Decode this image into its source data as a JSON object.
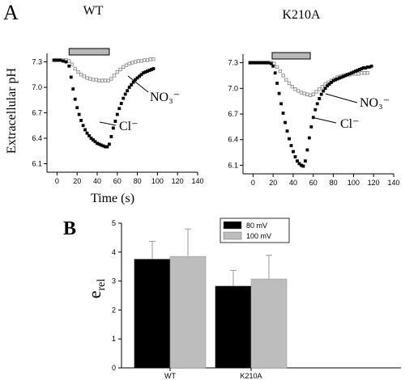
{
  "figure": {
    "panel_a_letter": "A",
    "panel_b_letter": "B"
  },
  "chart_data": [
    {
      "type": "scatter",
      "panel": "A",
      "title": "WT",
      "xlabel": "Time (s)",
      "ylabel": "Extracellular pH",
      "xlim": [
        -10,
        140
      ],
      "ylim": [
        6.0,
        7.4
      ],
      "xticks": [
        "0",
        "20",
        "40",
        "60",
        "80",
        "100",
        "120",
        "140"
      ],
      "yticks": [
        "6.1",
        "6.4",
        "6.7",
        "7.0",
        "7.3"
      ],
      "grid": false,
      "stimulus_bar": {
        "start": 12,
        "end": 52,
        "color": "#b8b8b8"
      },
      "annotations": [
        "NO₃⁻",
        "Cl⁻"
      ],
      "series": [
        {
          "name": "NO₃⁻",
          "marker": "open-square",
          "color": "#8c8c8c",
          "x": [
            -3,
            0,
            3,
            6,
            9,
            12,
            15,
            18,
            21,
            24,
            27,
            30,
            33,
            36,
            39,
            42,
            45,
            48,
            51,
            54,
            57,
            60,
            63,
            66,
            69,
            72,
            75,
            78,
            81,
            84,
            87,
            90,
            93,
            96
          ],
          "y": [
            7.32,
            7.32,
            7.32,
            7.32,
            7.32,
            7.31,
            7.27,
            7.22,
            7.18,
            7.15,
            7.13,
            7.11,
            7.1,
            7.09,
            7.09,
            7.08,
            7.08,
            7.08,
            7.08,
            7.1,
            7.14,
            7.18,
            7.21,
            7.24,
            7.26,
            7.28,
            7.29,
            7.3,
            7.31,
            7.31,
            7.32,
            7.32,
            7.33,
            7.33
          ]
        },
        {
          "name": "Cl⁻",
          "marker": "filled-square",
          "color": "#000000",
          "x": [
            -3,
            0,
            3,
            6,
            9,
            12,
            14,
            16,
            18,
            20,
            22,
            24,
            26,
            28,
            30,
            32,
            34,
            36,
            38,
            40,
            42,
            44,
            46,
            48,
            50,
            52,
            54,
            56,
            58,
            60,
            62,
            64,
            66,
            68,
            70,
            72,
            74,
            76,
            78,
            80,
            82,
            84,
            86,
            88,
            90,
            92,
            94,
            96
          ],
          "y": [
            7.32,
            7.32,
            7.32,
            7.31,
            7.3,
            7.25,
            7.12,
            6.98,
            6.86,
            6.76,
            6.68,
            6.61,
            6.55,
            6.5,
            6.46,
            6.43,
            6.4,
            6.38,
            6.36,
            6.34,
            6.33,
            6.32,
            6.31,
            6.3,
            6.3,
            6.33,
            6.42,
            6.52,
            6.6,
            6.68,
            6.75,
            6.81,
            6.87,
            6.92,
            6.96,
            7.0,
            7.03,
            7.06,
            7.09,
            7.11,
            7.13,
            7.15,
            7.17,
            7.18,
            7.19,
            7.2,
            7.21,
            7.22
          ]
        }
      ]
    },
    {
      "type": "scatter",
      "panel": "A",
      "title": "K210A",
      "xlabel": "",
      "ylabel": "",
      "xlim": [
        -10,
        140
      ],
      "ylim": [
        6.0,
        7.4
      ],
      "xticks": [
        "0",
        "20",
        "40",
        "60",
        "80",
        "100",
        "120",
        "140"
      ],
      "yticks": [
        "6.1",
        "6.4",
        "6.7",
        "7.0",
        "7.3"
      ],
      "grid": false,
      "stimulus_bar": {
        "start": 19,
        "end": 57,
        "color": "#b8b8b8"
      },
      "annotations": [
        "NO₃⁻",
        "Cl⁻"
      ],
      "series": [
        {
          "name": "NO₃⁻",
          "marker": "open-square",
          "color": "#8c8c8c",
          "x": [
            -3,
            0,
            3,
            6,
            9,
            12,
            15,
            18,
            21,
            24,
            27,
            30,
            33,
            36,
            39,
            42,
            45,
            48,
            51,
            54,
            57,
            60,
            63,
            66,
            69,
            72,
            75,
            78,
            81,
            84,
            87,
            90,
            93,
            96,
            99,
            102,
            105,
            108,
            111,
            114
          ],
          "y": [
            7.3,
            7.3,
            7.3,
            7.3,
            7.3,
            7.3,
            7.3,
            7.3,
            7.29,
            7.25,
            7.2,
            7.15,
            7.1,
            7.06,
            7.02,
            6.99,
            6.97,
            6.95,
            6.94,
            6.93,
            6.92,
            6.93,
            6.96,
            6.99,
            7.02,
            7.05,
            7.07,
            7.09,
            7.11,
            7.13,
            7.14,
            7.15,
            7.16,
            7.16,
            7.17,
            7.17,
            7.17,
            7.18,
            7.18,
            7.18
          ]
        },
        {
          "name": "Cl⁻",
          "marker": "filled-square",
          "color": "#000000",
          "x": [
            -3,
            0,
            3,
            6,
            9,
            12,
            15,
            18,
            20,
            22,
            24,
            26,
            28,
            30,
            32,
            34,
            36,
            38,
            40,
            42,
            44,
            46,
            48,
            50,
            52,
            54,
            56,
            58,
            60,
            62,
            64,
            66,
            68,
            70,
            72,
            74,
            76,
            78,
            80,
            82,
            84,
            86,
            88,
            90,
            92,
            94,
            96,
            98,
            100,
            102,
            104,
            106,
            108,
            110,
            112,
            114,
            116,
            118
          ],
          "y": [
            7.3,
            7.3,
            7.3,
            7.3,
            7.3,
            7.3,
            7.3,
            7.29,
            7.26,
            7.18,
            7.06,
            6.94,
            6.82,
            6.71,
            6.6,
            6.5,
            6.41,
            6.33,
            6.26,
            6.2,
            6.15,
            6.12,
            6.1,
            6.09,
            6.15,
            6.28,
            6.42,
            6.55,
            6.66,
            6.75,
            6.82,
            6.88,
            6.93,
            6.97,
            7.0,
            7.03,
            7.05,
            7.07,
            7.09,
            7.1,
            7.11,
            7.12,
            7.13,
            7.14,
            7.15,
            7.16,
            7.17,
            7.18,
            7.19,
            7.2,
            7.21,
            7.22,
            7.23,
            7.24,
            7.24,
            7.25,
            7.25,
            7.26
          ]
        }
      ]
    },
    {
      "type": "bar",
      "panel": "B",
      "title": "",
      "xlabel": "",
      "ylabel": "e",
      "ylabel_subscript": "rel",
      "categories": [
        "WT",
        "K210A"
      ],
      "ylim": [
        0,
        5
      ],
      "yticks": [
        "0",
        "1",
        "2",
        "3",
        "4",
        "5"
      ],
      "grid": false,
      "legend_position": "top-right",
      "series": [
        {
          "name": "80 mV",
          "color": "#000000",
          "values": [
            3.75,
            2.82
          ],
          "errors": [
            0.62,
            0.55
          ]
        },
        {
          "name": "100 mV",
          "color": "#bdbdbd",
          "values": [
            3.85,
            3.07
          ],
          "errors": [
            0.95,
            0.82
          ]
        }
      ]
    }
  ]
}
